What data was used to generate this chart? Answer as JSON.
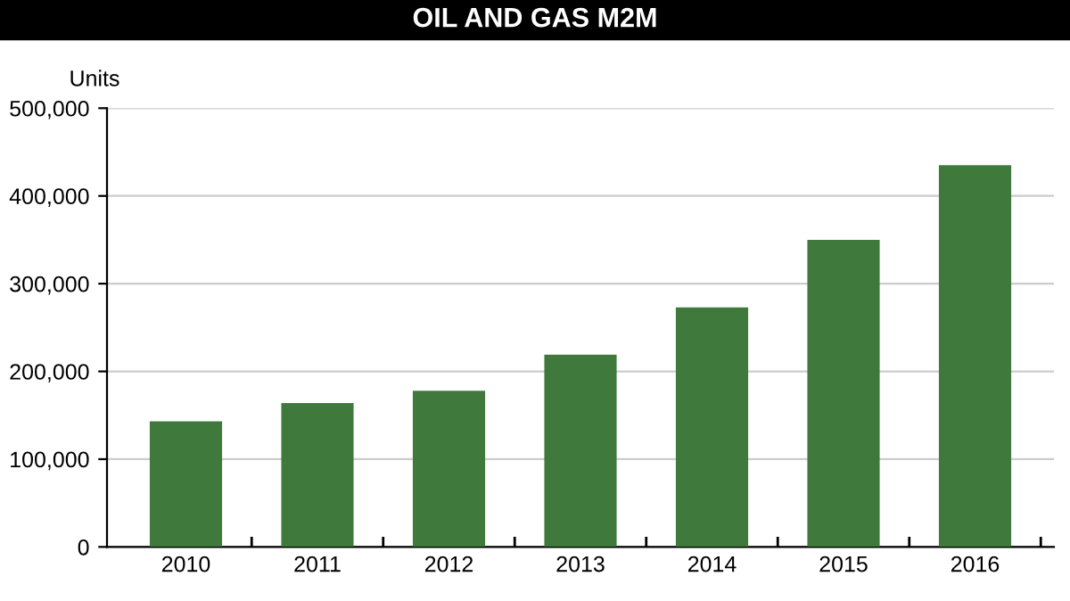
{
  "chart_data": {
    "type": "bar",
    "title": "OIL AND GAS M2M",
    "ylabel": "Units",
    "categories": [
      "2010",
      "2011",
      "2012",
      "2013",
      "2014",
      "2015",
      "2016"
    ],
    "values": [
      143000,
      164000,
      178000,
      219000,
      273000,
      350000,
      435000
    ],
    "color": "#3f7a3c",
    "ylim": [
      0,
      500000
    ],
    "yticks": [
      {
        "value": 0,
        "label": "0"
      },
      {
        "value": 100000,
        "label": "100,000"
      },
      {
        "value": 200000,
        "label": "200,000"
      },
      {
        "value": 300000,
        "label": "300,000"
      },
      {
        "value": 400000,
        "label": "400,000"
      },
      {
        "value": 500000,
        "label": "500,000"
      }
    ],
    "grid": "y"
  }
}
